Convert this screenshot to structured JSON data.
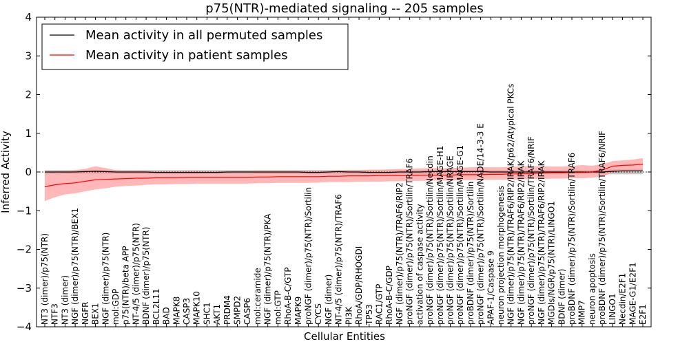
{
  "chart_data": {
    "type": "line",
    "title": "p75(NTR)-mediated signaling -- 205 samples",
    "xlabel": "Cellular Entities",
    "ylabel": "Inferred Activity",
    "ylim": [
      -4,
      4
    ],
    "yticks": [
      "−4",
      "−3",
      "−2",
      "−1",
      "0",
      "1",
      "2",
      "3",
      "4"
    ],
    "yticks_values": [
      -4,
      -3,
      -2,
      -1,
      0,
      1,
      2,
      3,
      4
    ],
    "grid": false,
    "legend_position": "upper-left",
    "zero_line": {
      "y": 0,
      "style": "dashed"
    },
    "colors": {
      "patient": "#ff0000",
      "patient_band": "#ff9999",
      "permuted": "#000000",
      "permuted_band": "#b3b3b3"
    },
    "categories": [
      "NT3 (dimer)/p75(NTR)",
      "NTF3",
      "NT3 (dimer)",
      "NGF (dimer)/p75(NTR)/BEX1",
      "NGFR",
      "BEX1",
      "NGF (dimer)/p75(NTR)",
      "mol:GDP",
      "p75(NTR)/beta APP",
      "NT-4/5 (dimer)/p75(NTR)",
      "BDNF (dimer)/p75(NTR)",
      "BCL2L11",
      "BAD",
      "MAPK8",
      "CASP3",
      "MAPK10",
      "SHC1",
      "AKT1",
      "PRDM4",
      "SMPD2",
      "CASP6",
      "mol:ceramide",
      "NGF (dimer)/p75(NTR)/PKA",
      "mol:GTP",
      "RhoA-B-C/GTP",
      "MAPK9",
      "proNGF (dimer)/p75(NTR)/Sortilin",
      "CYCS",
      "NGF (dimer)",
      "NT-4/5 (dimer)/p75(NTR)/TRAF6",
      "PI3K",
      "RhoA/GDP/RHOGDI",
      "TP53",
      "RAC1/GTP",
      "RhoA-B-C/GDP",
      "NGF (dimer)/p75(NTR)/TRAF6/RIP2",
      "proNGF (dimer)/p75(NTR)/Sortilin/TRAF6",
      "activation of caspase activity",
      "proNGF (dimer)/p75(NTR)/Sortilin/Necdin",
      "proNGF (dimer)/p75(NTR)/Sortilin/MAGE-H1",
      "proNGF (dimer)/p75(NTR)/Sortilin/NRAGE",
      "proNGF (dimer)/p75(NTR)/Sortilin/MAGE-G1",
      "proBDNF (dimer)/p75(NTR)/Sortilin",
      "proNGF (dimer)/p75(NTR)/Sortilin/NADE/14-3-3 E",
      "APAF-1/Caspase 9",
      "neuron projection morphogenesis",
      "NGF (dimer)/p75(NTR)/TRAF6/RIP2/IRAK/p62/Atypical PKCs",
      "NGF (dimer)/p75(NTR)/TRAF6/RIP2/IRAK",
      "proNGF (dimer)/p75(NTR)/Sortilin/TRAF6/NRIF",
      "NGF (dimer)/p75(NTR)/TRAF6/RIP2/IRAK",
      "MGDIs/NGR/p75(NTR)/LINGO1",
      "BDNF (dimer)",
      "proBDNF (dimer)/p75(NTR)/Sortilin/TRAF6",
      "MMP7",
      "neuron apoptosis",
      "proBDNF (dimer)/p75(NTR)/Sortilin/TRAF6/NRIF",
      "LINGO1",
      "Necdin/E2F1",
      "MAGE-G1/E2F1",
      "E2F1"
    ],
    "series": [
      {
        "name": "Mean activity in all permuted samples",
        "color": "#000000",
        "values": [
          0.0,
          0.0,
          0.0,
          0.0,
          0.01,
          0.02,
          0.01,
          0.0,
          0.0,
          0.0,
          0.0,
          -0.01,
          -0.01,
          -0.01,
          -0.01,
          -0.01,
          -0.01,
          -0.01,
          0.0,
          0.0,
          0.0,
          0.0,
          0.0,
          0.0,
          0.0,
          0.0,
          -0.01,
          -0.01,
          0.0,
          0.01,
          0.0,
          0.0,
          -0.01,
          -0.01,
          -0.01,
          0.0,
          0.0,
          0.0,
          0.01,
          0.01,
          0.01,
          0.01,
          0.01,
          0.01,
          0.0,
          0.0,
          0.0,
          0.0,
          0.0,
          0.0,
          0.0,
          0.0,
          0.0,
          0.0,
          0.0,
          0.0,
          0.02,
          0.03,
          0.03,
          0.03
        ],
        "band_lower": [
          -0.05,
          -0.05,
          -0.05,
          -0.05,
          -0.05,
          -0.05,
          -0.05,
          -0.05,
          -0.05,
          -0.05,
          -0.05,
          -0.05,
          -0.05,
          -0.05,
          -0.05,
          -0.05,
          -0.05,
          -0.05,
          -0.05,
          -0.05,
          -0.05,
          -0.05,
          -0.05,
          -0.05,
          -0.05,
          -0.05,
          -0.05,
          -0.05,
          -0.05,
          -0.05,
          -0.05,
          -0.05,
          -0.05,
          -0.05,
          -0.05,
          -0.05,
          -0.05,
          -0.05,
          -0.05,
          -0.05,
          -0.05,
          -0.05,
          -0.05,
          -0.05,
          -0.05,
          -0.05,
          -0.05,
          -0.05,
          -0.05,
          -0.05,
          -0.05,
          -0.05,
          -0.05,
          -0.05,
          -0.05,
          -0.05,
          -0.06,
          -0.06,
          -0.06,
          -0.06
        ],
        "band_upper": [
          0.05,
          0.05,
          0.05,
          0.05,
          0.05,
          0.05,
          0.05,
          0.05,
          0.05,
          0.05,
          0.05,
          0.05,
          0.05,
          0.05,
          0.05,
          0.05,
          0.05,
          0.05,
          0.05,
          0.05,
          0.05,
          0.05,
          0.05,
          0.05,
          0.05,
          0.05,
          0.05,
          0.05,
          0.05,
          0.05,
          0.05,
          0.05,
          0.05,
          0.05,
          0.05,
          0.05,
          0.05,
          0.05,
          0.05,
          0.05,
          0.05,
          0.05,
          0.05,
          0.05,
          0.05,
          0.05,
          0.05,
          0.05,
          0.05,
          0.05,
          0.05,
          0.05,
          0.05,
          0.05,
          0.05,
          0.05,
          0.08,
          0.08,
          0.08,
          0.08
        ]
      },
      {
        "name": "Mean activity in patient samples",
        "color": "#ff0000",
        "values": [
          -0.38,
          -0.33,
          -0.3,
          -0.28,
          -0.24,
          -0.2,
          -0.19,
          -0.18,
          -0.17,
          -0.16,
          -0.16,
          -0.15,
          -0.15,
          -0.15,
          -0.14,
          -0.14,
          -0.14,
          -0.14,
          -0.14,
          -0.14,
          -0.14,
          -0.13,
          -0.13,
          -0.12,
          -0.12,
          -0.12,
          -0.12,
          -0.12,
          -0.11,
          -0.11,
          -0.1,
          -0.1,
          -0.1,
          -0.09,
          -0.09,
          -0.09,
          -0.09,
          -0.08,
          -0.08,
          -0.08,
          -0.08,
          -0.07,
          -0.07,
          -0.07,
          -0.06,
          -0.06,
          -0.05,
          -0.05,
          -0.04,
          -0.03,
          -0.02,
          -0.02,
          -0.01,
          -0.01,
          0.0,
          0.05,
          0.15,
          0.17,
          0.18,
          0.2
        ],
        "band_lower": [
          -0.75,
          -0.65,
          -0.58,
          -0.55,
          -0.5,
          -0.45,
          -0.42,
          -0.38,
          -0.36,
          -0.35,
          -0.33,
          -0.32,
          -0.32,
          -0.31,
          -0.31,
          -0.3,
          -0.3,
          -0.3,
          -0.3,
          -0.3,
          -0.3,
          -0.29,
          -0.29,
          -0.28,
          -0.28,
          -0.28,
          -0.28,
          -0.27,
          -0.26,
          -0.26,
          -0.26,
          -0.25,
          -0.25,
          -0.25,
          -0.24,
          -0.24,
          -0.23,
          -0.23,
          -0.22,
          -0.22,
          -0.22,
          -0.21,
          -0.21,
          -0.2,
          -0.2,
          -0.2,
          -0.19,
          -0.19,
          -0.18,
          -0.18,
          -0.17,
          -0.17,
          -0.16,
          -0.16,
          -0.15,
          -0.12,
          -0.02,
          0.0,
          0.02,
          0.05
        ],
        "band_upper": [
          0.0,
          0.02,
          0.03,
          0.05,
          0.08,
          0.15,
          0.1,
          0.05,
          0.03,
          0.04,
          0.03,
          0.02,
          0.03,
          0.02,
          0.03,
          0.03,
          0.02,
          0.02,
          0.02,
          0.02,
          0.02,
          0.03,
          0.03,
          0.03,
          0.04,
          0.03,
          0.04,
          0.03,
          0.04,
          0.04,
          0.05,
          0.05,
          0.06,
          0.06,
          0.07,
          0.08,
          0.08,
          0.09,
          0.1,
          0.1,
          0.1,
          0.11,
          0.12,
          0.13,
          0.12,
          0.12,
          0.14,
          0.14,
          0.15,
          0.15,
          0.14,
          0.14,
          0.15,
          0.18,
          0.16,
          0.2,
          0.28,
          0.3,
          0.32,
          0.36
        ]
      }
    ]
  }
}
